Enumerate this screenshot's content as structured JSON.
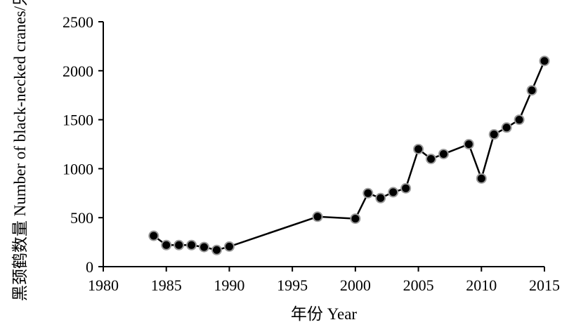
{
  "chart_data": {
    "type": "line",
    "title": "",
    "xlabel": "年份 Year",
    "ylabel": "黑颈鹤数量 Number of black-necked cranes/只",
    "xlim": [
      1980,
      2015
    ],
    "ylim": [
      0,
      2500
    ],
    "xticks": [
      1980,
      1985,
      1990,
      1995,
      2000,
      2005,
      2010,
      2015
    ],
    "yticks": [
      0,
      500,
      1000,
      1500,
      2000,
      2500
    ],
    "grid": false,
    "legend": "none",
    "series": [
      {
        "x": [
          1984,
          1985,
          1986,
          1987,
          1988,
          1989,
          1990,
          1997,
          2000,
          2001,
          2002,
          2003,
          2004,
          2005,
          2006,
          2007,
          2009,
          2010,
          2011,
          2012,
          2013,
          2014,
          2015
        ],
        "y": [
          315,
          220,
          220,
          220,
          200,
          170,
          205,
          510,
          490,
          750,
          700,
          760,
          800,
          1200,
          1100,
          1150,
          1250,
          900,
          1350,
          1420,
          1500,
          1800,
          2100
        ],
        "line_color": "#000000",
        "marker_fill": "#000000",
        "marker_edge": "#9a9a9a"
      }
    ]
  }
}
